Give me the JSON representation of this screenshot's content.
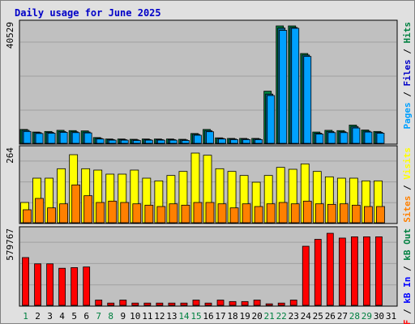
{
  "chart_data": {
    "type": "bar",
    "title": "Daily usage for June 2025",
    "colors": {
      "frame": "#e0e0e0",
      "plot_bg": "#c0c0c0",
      "title": "#0000c8",
      "axis_text": "#000000",
      "pages": "#00a0ff",
      "files": "#00608a",
      "hits": "#008040",
      "visits": "#ffff00",
      "sites": "#ff8000",
      "kb_in": "#0000ff",
      "kb_out": "#008040",
      "kb_f": "#ff0000",
      "weekend_label": "#008040"
    },
    "days": [
      "1",
      "2",
      "3",
      "4",
      "5",
      "6",
      "7",
      "8",
      "9",
      "10",
      "11",
      "12",
      "13",
      "14",
      "15",
      "16",
      "17",
      "18",
      "19",
      "20",
      "21",
      "22",
      "23",
      "24",
      "25",
      "26",
      "27",
      "28",
      "29",
      "30",
      "31"
    ],
    "weekend_days": [
      "1",
      "7",
      "8",
      "14",
      "15",
      "21",
      "22",
      "28",
      "29"
    ],
    "panels": [
      {
        "id": "hits-files-pages",
        "max_label": "40529",
        "ymax": 40529,
        "legend": [
          {
            "text": "Pages",
            "color": "#00a0ff"
          },
          {
            "text": " / ",
            "color": "#000000"
          },
          {
            "text": "Files",
            "color": "#0000c8"
          },
          {
            "text": " / ",
            "color": "#000000"
          },
          {
            "text": "Hits",
            "color": "#008040"
          }
        ],
        "series": [
          {
            "name": "Hits",
            "color": "#008040",
            "values": [
              4800,
              3900,
              4100,
              4500,
              4400,
              4300,
              2000,
              1500,
              1500,
              1400,
              1500,
              1500,
              1500,
              1400,
              3400,
              4800,
              1900,
              1700,
              1700,
              1700,
              18000,
              40529,
              40529,
              31000,
              3900,
              4500,
              4400,
              6300,
              4600,
              4100,
              null
            ]
          },
          {
            "name": "Files",
            "color": "#00608a",
            "values": [
              4500,
              3700,
              3800,
              4100,
              4000,
              3900,
              1700,
              1300,
              1300,
              1200,
              1300,
              1300,
              1300,
              1200,
              3100,
              4400,
              1700,
              1500,
              1500,
              1500,
              17000,
              39800,
              40000,
              30500,
              3500,
              4100,
              4000,
              5800,
              4200,
              3800,
              null
            ]
          },
          {
            "name": "Pages",
            "color": "#00a0ff",
            "values": [
              4100,
              3400,
              3500,
              3800,
              3700,
              3600,
              1500,
              1100,
              1100,
              1000,
              1100,
              1100,
              1100,
              1000,
              2800,
              4000,
              1500,
              1300,
              1300,
              1300,
              16500,
              39000,
              39700,
              30000,
              3200,
              3700,
              3700,
              5300,
              3900,
              3500,
              null
            ]
          }
        ]
      },
      {
        "id": "visits-sites",
        "max_label": "264",
        "ymax": 264,
        "legend": [
          {
            "text": "Sites",
            "color": "#ff8000"
          },
          {
            "text": " / ",
            "color": "#000000"
          },
          {
            "text": "Visits",
            "color": "#ffff00"
          }
        ],
        "series": [
          {
            "name": "Visits",
            "color": "#ffff00",
            "values": [
              75,
              165,
              165,
              200,
              252,
              200,
              195,
              180,
              180,
              195,
              165,
              155,
              175,
              190,
              258,
              250,
              200,
              190,
              175,
              150,
              175,
              205,
              198,
              218,
              190,
              170,
              165,
              165,
              155,
              155,
              null
            ]
          },
          {
            "name": "Sites",
            "color": "#ff8000",
            "values": [
              48,
              90,
              55,
              70,
              140,
              100,
              75,
              80,
              75,
              70,
              65,
              60,
              70,
              65,
              75,
              75,
              70,
              55,
              70,
              60,
              70,
              75,
              70,
              80,
              70,
              68,
              70,
              65,
              60,
              60,
              null
            ]
          }
        ]
      },
      {
        "id": "kbytes",
        "max_label": "579767",
        "ymax": 579767,
        "legend": [
          {
            "text": "kB F",
            "color": "#ff0000"
          },
          {
            "text": " / ",
            "color": "#000000"
          },
          {
            "text": "kB In",
            "color": "#0000ff"
          },
          {
            "text": " / ",
            "color": "#000000"
          },
          {
            "text": "kB Out",
            "color": "#008040"
          }
        ],
        "series": [
          {
            "name": "kB F",
            "color": "#ff0000",
            "values": [
              380000,
              330000,
              330000,
              295000,
              300000,
              305000,
              42000,
              18000,
              42000,
              18000,
              18000,
              18000,
              18000,
              18000,
              42000,
              18000,
              42000,
              30000,
              30000,
              42000,
              12000,
              18000,
              42000,
              470000,
              525000,
              573000,
              535000,
              545000,
              545000,
              545000,
              null
            ]
          }
        ]
      }
    ]
  }
}
